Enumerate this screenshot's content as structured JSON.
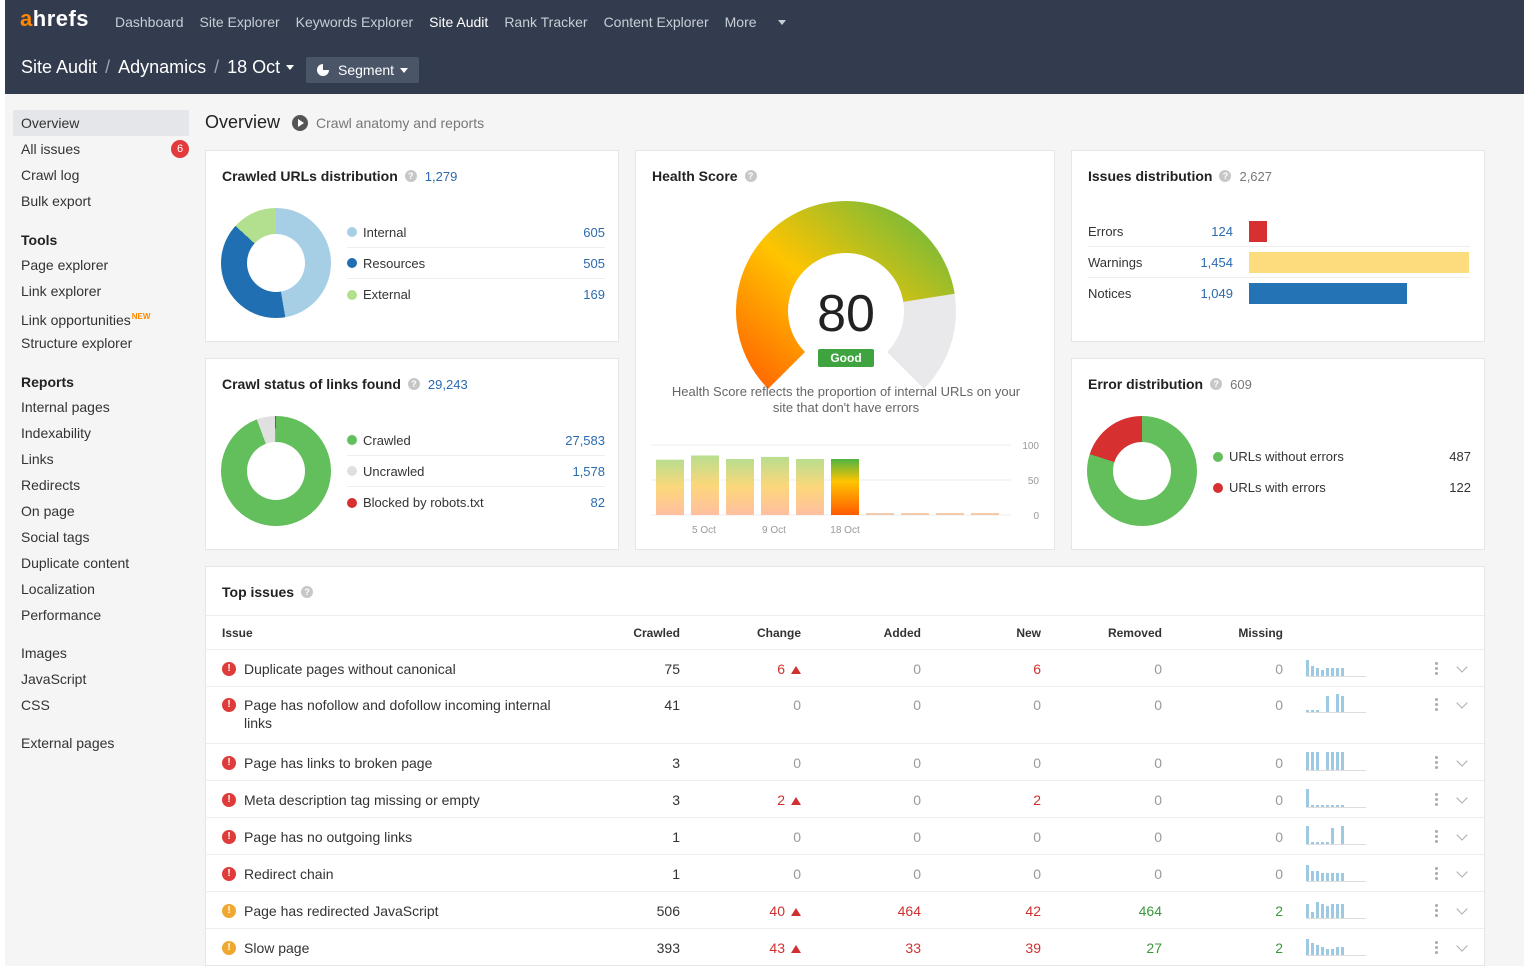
{
  "brand": {
    "logo_a": "a",
    "logo_rest": "hrefs"
  },
  "nav": {
    "items": [
      "Dashboard",
      "Site Explorer",
      "Keywords Explorer",
      "Site Audit",
      "Rank Tracker",
      "Content Explorer"
    ],
    "more": "More"
  },
  "breadcrumb": {
    "section": "Site Audit",
    "project": "Adynamics",
    "crawl": "18 Oct",
    "sep": "/"
  },
  "segment_label": "Segment",
  "sidebar": {
    "top": [
      "Overview",
      "All issues",
      "Crawl log",
      "Bulk export"
    ],
    "all_issues_badge": "6",
    "tools_title": "Tools",
    "tools": [
      "Page explorer",
      "Link explorer",
      "Link opportunities",
      "Structure explorer"
    ],
    "new_tag": "NEW",
    "reports_title": "Reports",
    "reports": [
      "Internal pages",
      "Indexability",
      "Links",
      "Redirects",
      "On page",
      "Social tags",
      "Duplicate content",
      "Localization",
      "Performance"
    ],
    "resources": [
      "Images",
      "JavaScript",
      "CSS"
    ],
    "external": "External pages"
  },
  "page": {
    "title": "Overview",
    "subtitle": "Crawl anatomy and reports"
  },
  "crawled_dist": {
    "title": "Crawled URLs distribution",
    "total": "1,279",
    "rows": [
      {
        "label": "Internal",
        "value": "605",
        "color": "#a6cfe6"
      },
      {
        "label": "Resources",
        "value": "505",
        "color": "#1f6fb2"
      },
      {
        "label": "External",
        "value": "169",
        "color": "#b3e08f"
      }
    ]
  },
  "crawl_status": {
    "title": "Crawl status of links found",
    "total": "29,243",
    "rows": [
      {
        "label": "Crawled",
        "value": "27,583",
        "color": "#62bf5b"
      },
      {
        "label": "Uncrawled",
        "value": "1,578",
        "color": "#e0e0e0"
      },
      {
        "label": "Blocked by robots.txt",
        "value": "82",
        "color": "#d73030"
      }
    ]
  },
  "health": {
    "title": "Health Score",
    "score": "80",
    "status": "Good",
    "description": "Health Score reflects the proportion of internal URLs on your site that don't have errors",
    "history": [
      79,
      85,
      80,
      83,
      80,
      80,
      0,
      0,
      0,
      0
    ],
    "x_labels": [
      "5 Oct",
      "9 Oct",
      "18 Oct"
    ],
    "y_labels": [
      "100",
      "50",
      "0"
    ]
  },
  "issues_dist": {
    "title": "Issues distribution",
    "total": "2,627",
    "rows": [
      {
        "label": "Errors",
        "value": "124",
        "share": 0.085,
        "color": "#d73030"
      },
      {
        "label": "Warnings",
        "value": "1,454",
        "share": 1.0,
        "color": "#fddc7e"
      },
      {
        "label": "Notices",
        "value": "1,049",
        "share": 0.72,
        "color": "#2373b5"
      }
    ]
  },
  "error_dist": {
    "title": "Error distribution",
    "total": "609",
    "rows": [
      {
        "label": "URLs without errors",
        "value": "487",
        "color": "#62bf5b"
      },
      {
        "label": "URLs with errors",
        "value": "122",
        "color": "#d73030"
      }
    ]
  },
  "top_issues": {
    "title": "Top issues",
    "headers": [
      "Issue",
      "Crawled",
      "Change",
      "Added",
      "New",
      "Removed",
      "Missing"
    ],
    "rows": [
      {
        "type": "err",
        "name": "Duplicate pages without canonical",
        "crawled": "75",
        "change": "6",
        "change_up": true,
        "added": "0",
        "new": "6",
        "removed": "0",
        "missing": "0",
        "spark": [
          16,
          10,
          8,
          6,
          8,
          8,
          8,
          8
        ]
      },
      {
        "type": "err",
        "name": "Page has nofollow and dofollow incoming internal links",
        "crawled": "41",
        "change": "0",
        "change_up": false,
        "added": "0",
        "new": "0",
        "removed": "0",
        "missing": "0",
        "spark": [
          2,
          2,
          2,
          0,
          16,
          0,
          18,
          16
        ]
      },
      {
        "type": "err",
        "name": "Page has links to broken page",
        "crawled": "3",
        "change": "0",
        "change_up": false,
        "added": "0",
        "new": "0",
        "removed": "0",
        "missing": "0",
        "spark": [
          18,
          18,
          18,
          0,
          18,
          18,
          18,
          18
        ]
      },
      {
        "type": "err",
        "name": "Meta description tag missing or empty",
        "crawled": "3",
        "change": "2",
        "change_up": true,
        "added": "0",
        "new": "2",
        "removed": "0",
        "missing": "0",
        "spark": [
          18,
          2,
          2,
          2,
          2,
          2,
          2,
          2
        ]
      },
      {
        "type": "err",
        "name": "Page has no outgoing links",
        "crawled": "1",
        "change": "0",
        "change_up": false,
        "added": "0",
        "new": "0",
        "removed": "0",
        "missing": "0",
        "spark": [
          18,
          2,
          2,
          2,
          2,
          16,
          0,
          18
        ]
      },
      {
        "type": "err",
        "name": "Redirect chain",
        "crawled": "1",
        "change": "0",
        "change_up": false,
        "added": "0",
        "new": "0",
        "removed": "0",
        "missing": "0",
        "spark": [
          16,
          10,
          10,
          8,
          8,
          8,
          8,
          8
        ]
      },
      {
        "type": "warn",
        "name": "Page has redirected JavaScript",
        "crawled": "506",
        "change": "40",
        "change_up": true,
        "added": "464",
        "new": "42",
        "removed": "464",
        "missing": "2",
        "spark": [
          14,
          6,
          16,
          14,
          12,
          14,
          14,
          14
        ]
      },
      {
        "type": "warn",
        "name": "Slow page",
        "crawled": "393",
        "change": "43",
        "change_up": true,
        "added": "33",
        "new": "39",
        "removed": "27",
        "missing": "2",
        "spark": [
          16,
          12,
          10,
          8,
          6,
          6,
          8,
          8
        ]
      }
    ]
  }
}
